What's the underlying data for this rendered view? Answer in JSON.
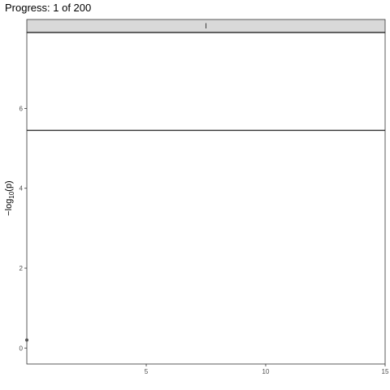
{
  "title": "Progress: 1 of 200",
  "chart_data": {
    "type": "scatter",
    "title": "Progress: 1 of 200",
    "facet": "I",
    "xlabel": "",
    "ylabel_parts": {
      "pre": "−log",
      "sub": "10",
      "post": "(p)"
    },
    "xlim": [
      0,
      15
    ],
    "ylim": [
      -0.4,
      7.9
    ],
    "x_ticks": [
      5,
      10,
      15
    ],
    "y_ticks": [
      0,
      2,
      4,
      6
    ],
    "hline": 5.45,
    "grid": false,
    "points": [
      {
        "x": 0,
        "y": 0.2
      }
    ],
    "colors": {
      "strip_fill": "#d9d9d9",
      "panel_border": "#333333",
      "line": "#333333",
      "point": "#555555"
    }
  }
}
